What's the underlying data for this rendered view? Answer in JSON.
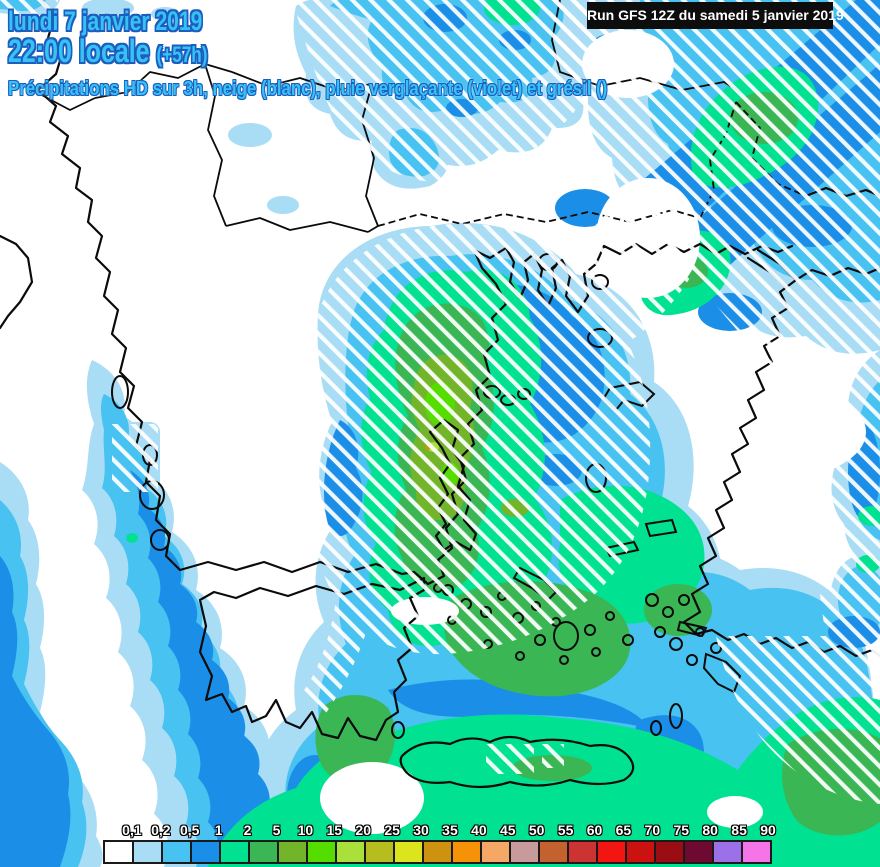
{
  "header": {
    "date_line": "lundi 7 janvier 2019",
    "time_line": "22:00 locale",
    "time_offset": "(+57h)",
    "subtitle": "Précipitations HD sur 3h, neige (blanc), pluie verglaçante (violet) et grésil ()",
    "run_info": "Run GFS 12Z du samedi 5 janvier 2019",
    "title_color": "#38c2f4",
    "title_outline_color": "#1b5ec0",
    "run_bg_color": "#0d0d0d",
    "run_text_color": "#ffffff"
  },
  "colorbar": {
    "labels": [
      "0,1",
      "0,2",
      "0,5",
      "1",
      "2",
      "5",
      "10",
      "15",
      "20",
      "25",
      "30",
      "35",
      "40",
      "45",
      "50",
      "55",
      "60",
      "65",
      "70",
      "75",
      "80",
      "85",
      "90"
    ],
    "colors": [
      "#ffffff",
      "#a9dcf5",
      "#47c2f1",
      "#1b8fe8",
      "#00e291",
      "#3bb654",
      "#72b42a",
      "#55dd00",
      "#a9e03c",
      "#b5be1e",
      "#dce41e",
      "#cc9210",
      "#f59207",
      "#f5a766",
      "#c79a9b",
      "#c4622f",
      "#cb3433",
      "#f21511",
      "#cc1111",
      "#9a0e13",
      "#6e0a32",
      "#9b70e8",
      "#f575e8"
    ]
  },
  "map": {
    "hatch_meaning": "neige (blanc)",
    "hatch_color": "#ffffff",
    "coastline_color": "#0b0b0b"
  }
}
